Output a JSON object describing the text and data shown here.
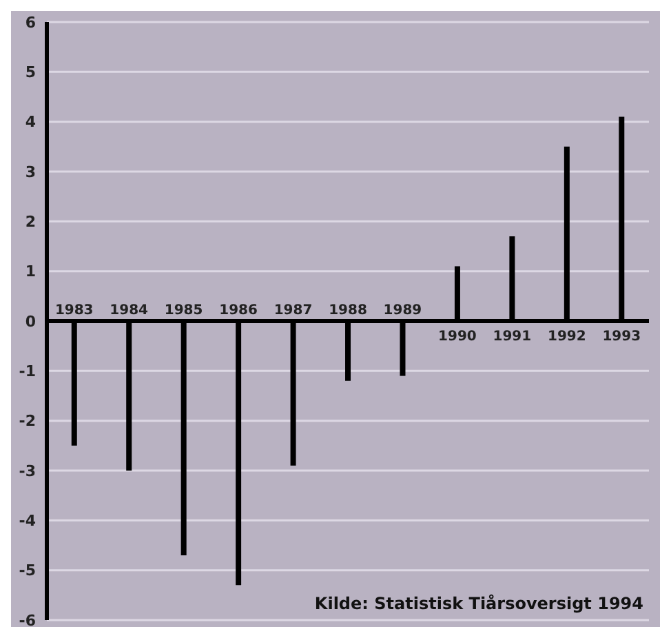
{
  "chart_data": {
    "type": "bar",
    "categories": [
      "1983",
      "1984",
      "1985",
      "1986",
      "1987",
      "1988",
      "1989",
      "1990",
      "1991",
      "1992",
      "1993"
    ],
    "values": [
      -2.5,
      -3.0,
      -4.7,
      -5.3,
      -2.9,
      -1.2,
      -1.1,
      1.1,
      1.7,
      3.5,
      4.1
    ],
    "color": "#000000",
    "ylim": [
      -6,
      6
    ],
    "yticks": [
      -6,
      -5,
      -4,
      -3,
      -2,
      -1,
      0,
      1,
      2,
      3,
      4,
      5,
      6
    ],
    "grid": "y",
    "annotations": [
      "Kilde: Statistisk Tiårsoversigt 1994"
    ]
  }
}
